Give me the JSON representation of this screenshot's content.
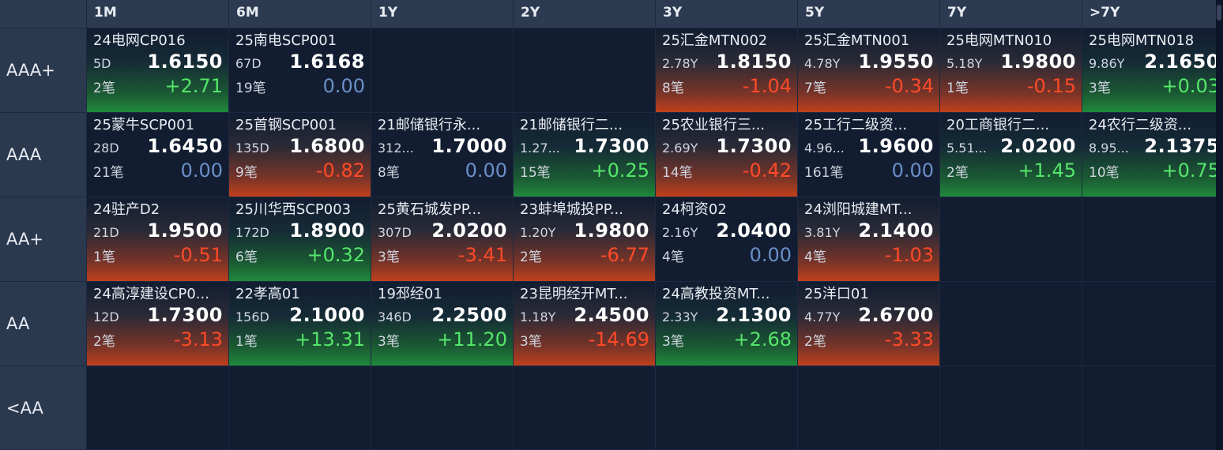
{
  "columns": [
    "1M",
    "6M",
    "1Y",
    "2Y",
    "3Y",
    "5Y",
    "7Y",
    ">7Y"
  ],
  "rows": [
    {
      "label": "AAA+",
      "cells": [
        {
          "name": "24电网CP016",
          "term": "5D",
          "rate": "1.6150",
          "count": "2笔",
          "change": "+2.71",
          "dir": "up"
        },
        {
          "name": "25南电SCP001",
          "term": "67D",
          "rate": "1.6168",
          "count": "19笔",
          "change": "0.00",
          "dir": "flat"
        },
        null,
        null,
        {
          "name": "25汇金MTN002",
          "term": "2.78Y",
          "rate": "1.8150",
          "count": "8笔",
          "change": "-1.04",
          "dir": "down"
        },
        {
          "name": "25汇金MTN001",
          "term": "4.78Y",
          "rate": "1.9550",
          "count": "7笔",
          "change": "-0.34",
          "dir": "down"
        },
        {
          "name": "25电网MTN010",
          "term": "5.18Y",
          "rate": "1.9800",
          "count": "1笔",
          "change": "-0.15",
          "dir": "down"
        },
        {
          "name": "25电网MTN018",
          "term": "9.86Y",
          "rate": "2.1650",
          "count": "3笔",
          "change": "+0.03",
          "dir": "up"
        }
      ]
    },
    {
      "label": "AAA",
      "cells": [
        {
          "name": "25蒙牛SCP001",
          "term": "28D",
          "rate": "1.6450",
          "count": "21笔",
          "change": "0.00",
          "dir": "flat"
        },
        {
          "name": "25首钢SCP001",
          "term": "135D",
          "rate": "1.6800",
          "count": "9笔",
          "change": "-0.82",
          "dir": "down"
        },
        {
          "name": "21邮储银行永...",
          "term": "312...",
          "rate": "1.7000",
          "count": "8笔",
          "change": "0.00",
          "dir": "flat"
        },
        {
          "name": "21邮储银行二...",
          "term": "1.27...",
          "rate": "1.7300",
          "count": "15笔",
          "change": "+0.25",
          "dir": "up"
        },
        {
          "name": "25农业银行三...",
          "term": "2.69Y",
          "rate": "1.7300",
          "count": "14笔",
          "change": "-0.42",
          "dir": "down"
        },
        {
          "name": "25工行二级资...",
          "term": "4.96...",
          "rate": "1.9600",
          "count": "161笔",
          "change": "0.00",
          "dir": "flat"
        },
        {
          "name": "20工商银行二...",
          "term": "5.51...",
          "rate": "2.0200",
          "count": "2笔",
          "change": "+1.45",
          "dir": "up"
        },
        {
          "name": "24农行二级资...",
          "term": "8.95...",
          "rate": "2.1375",
          "count": "10笔",
          "change": "+0.75",
          "dir": "up"
        }
      ]
    },
    {
      "label": "AA+",
      "cells": [
        {
          "name": "24驻产D2",
          "term": "21D",
          "rate": "1.9500",
          "count": "1笔",
          "change": "-0.51",
          "dir": "down"
        },
        {
          "name": "25川华西SCP003",
          "term": "172D",
          "rate": "1.8900",
          "count": "6笔",
          "change": "+0.32",
          "dir": "up"
        },
        {
          "name": "25黄石城发PP...",
          "term": "307D",
          "rate": "2.0200",
          "count": "3笔",
          "change": "-3.41",
          "dir": "down"
        },
        {
          "name": "23蚌埠城投PP...",
          "term": "1.20Y",
          "rate": "1.9800",
          "count": "2笔",
          "change": "-6.77",
          "dir": "down"
        },
        {
          "name": "24柯资02",
          "term": "2.16Y",
          "rate": "2.0400",
          "count": "4笔",
          "change": "0.00",
          "dir": "flat"
        },
        {
          "name": "24浏阳城建MT...",
          "term": "3.81Y",
          "rate": "2.1400",
          "count": "4笔",
          "change": "-1.03",
          "dir": "down"
        },
        null,
        null
      ]
    },
    {
      "label": "AA",
      "cells": [
        {
          "name": "24高淳建设CP0...",
          "term": "12D",
          "rate": "1.7300",
          "count": "2笔",
          "change": "-3.13",
          "dir": "down"
        },
        {
          "name": "22孝高01",
          "term": "156D",
          "rate": "2.1000",
          "count": "1笔",
          "change": "+13.31",
          "dir": "up"
        },
        {
          "name": "19邳经01",
          "term": "346D",
          "rate": "2.2500",
          "count": "3笔",
          "change": "+11.20",
          "dir": "up"
        },
        {
          "name": "23昆明经开MT...",
          "term": "1.18Y",
          "rate": "2.4500",
          "count": "3笔",
          "change": "-14.69",
          "dir": "down"
        },
        {
          "name": "24高教投资MT...",
          "term": "2.33Y",
          "rate": "2.1300",
          "count": "3笔",
          "change": "+2.68",
          "dir": "up"
        },
        {
          "name": "25洋口01",
          "term": "4.77Y",
          "rate": "2.6700",
          "count": "2笔",
          "change": "-3.33",
          "dir": "down"
        },
        null,
        null
      ]
    },
    {
      "label": "<AA",
      "cells": [
        null,
        null,
        null,
        null,
        null,
        null,
        null,
        null
      ]
    }
  ]
}
